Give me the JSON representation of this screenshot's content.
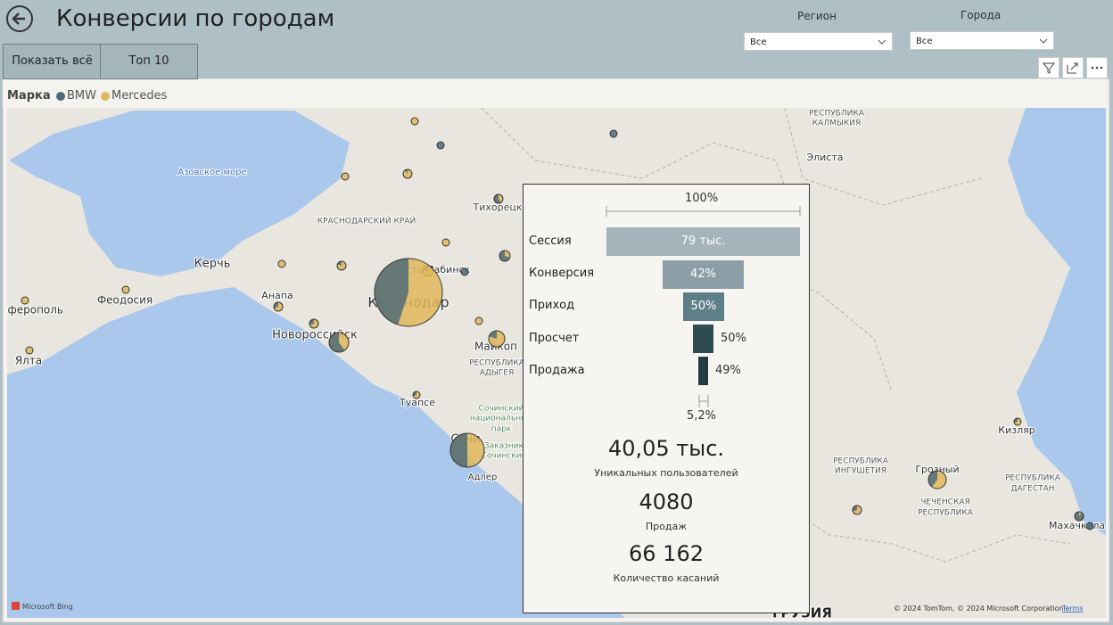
{
  "header": {
    "title": "Конверсии по городам",
    "buttons": [
      "Показать всё",
      "Топ 10"
    ],
    "filters": [
      {
        "label": "Регион",
        "value": "Все"
      },
      {
        "label": "Города",
        "value": "Все"
      }
    ]
  },
  "legend": {
    "title": "Марка",
    "items": [
      {
        "name": "BMW",
        "color": "#4f6b78"
      },
      {
        "name": "Mercedes",
        "color": "#e0b75a"
      }
    ]
  },
  "map": {
    "labels": [
      "Азовское море",
      "КРАСНОДАРСКИЙ КРАЙ",
      "Тихорецк",
      "Керчь",
      "Феодосия",
      "Анапа",
      "Новороссийск",
      "Краснодар",
      "Усть-Лабинск",
      "Майкоп",
      "РЕСПУБЛИКА",
      "АДЫГЕЯ",
      "Туапсе",
      "Сочинский",
      "национальный",
      "парк",
      "Заказник",
      "Сочинский",
      "Сочи",
      "Адлер",
      "Ялта",
      "Симферополь",
      "РЕСПУБЛИКА",
      "КАЛМЫКИЯ",
      "Элиста",
      "Кизляр",
      "РЕСПУБЛИКА",
      "ИНГУШЕТИЯ",
      "Грозный",
      "ЧЕЧЕНСКАЯ",
      "РЕСПУБЛИКА",
      "РЕСПУБЛИКА",
      "ДАГЕСТАН",
      "Махачкала",
      "ГРУЗИЯ"
    ],
    "attribution": {
      "provider": "Microsoft Bing",
      "copyright": "© 2024 TomTom, © 2024 Microsoft Corporation",
      "terms": "Terms"
    }
  },
  "tooltip": {
    "scale_label": "100%",
    "funnel": [
      {
        "stage": "Сессия",
        "label": "79 тыс."
      },
      {
        "stage": "Конверсия",
        "label": "42%"
      },
      {
        "stage": "Приход",
        "label": "50%"
      },
      {
        "stage": "Просчет",
        "label": "50%"
      },
      {
        "stage": "Продажа",
        "label": "49%"
      }
    ],
    "final_label": "5,2%",
    "kpis": [
      {
        "value": "40,05 тыс.",
        "label": "Уникальных пользователей"
      },
      {
        "value": "4080",
        "label": "Продаж"
      },
      {
        "value": "66 162",
        "label": "Количество касаний"
      }
    ]
  }
}
